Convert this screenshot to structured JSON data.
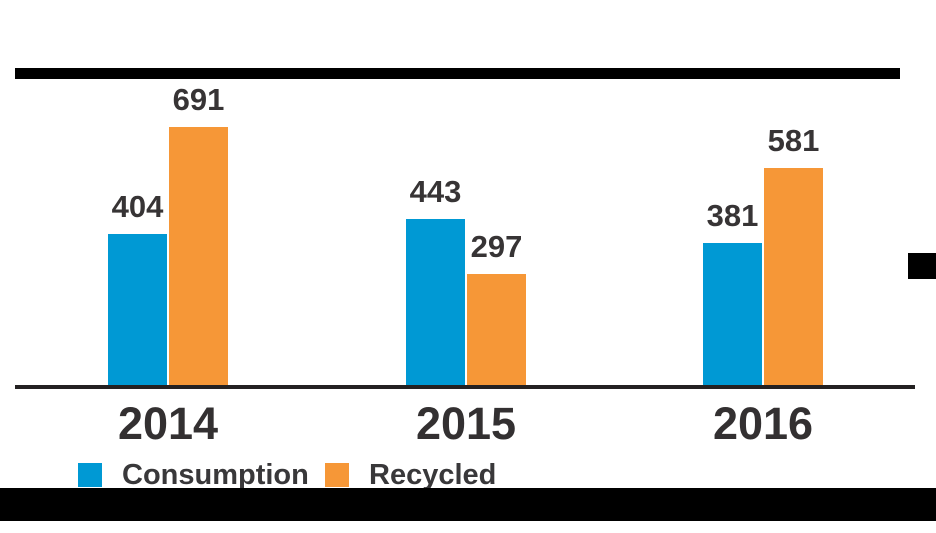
{
  "colors": {
    "consumption": "#0099d4",
    "recycled": "#f69737",
    "value_label_text": "#373435",
    "year_label_text": "#333031",
    "legend_text": "#39383a",
    "axis": "#242122",
    "decor_black": "#000000",
    "background": "#ffffff"
  },
  "chart_data": {
    "type": "bar",
    "title": "",
    "xlabel": "",
    "ylabel": "",
    "categories": [
      "2014",
      "2015",
      "2016"
    ],
    "series": [
      {
        "name": "Consumption",
        "color": "#0099d4",
        "values": [
          404,
          443,
          381
        ]
      },
      {
        "name": "Recycled",
        "color": "#f69737",
        "values": [
          691,
          297,
          581
        ]
      }
    ],
    "value_labels_shown": true,
    "y_axis_ticks_shown": false,
    "grid": false,
    "ylim": [
      0,
      760
    ],
    "legend_position": "bottom-left"
  },
  "legend": {
    "items": [
      {
        "label": "Consumption",
        "color": "#0099d4"
      },
      {
        "label": "Recycled",
        "color": "#f69737"
      }
    ]
  }
}
